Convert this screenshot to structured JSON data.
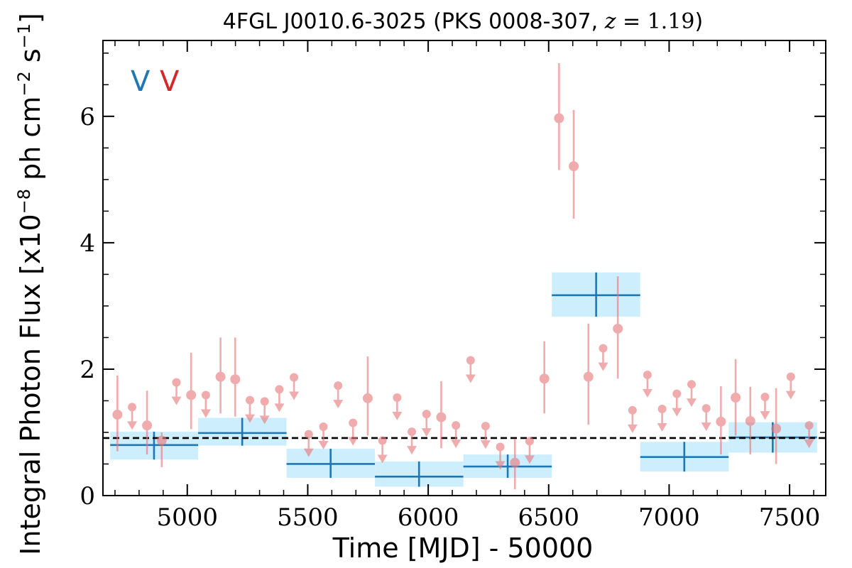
{
  "chart_data": {
    "type": "scatter",
    "title": {
      "source": "4FGL J0010.6-3025 (PKS 0008-307, ",
      "z_symbol": "z",
      "z_value": " = 1.19",
      "close": ")"
    },
    "xlabel": "Time [MJD] - 50000",
    "ylabel": {
      "main": "Integral Photon Flux [x10",
      "exp1": "−8",
      "mid": " ph cm",
      "exp2": "−2",
      "mid2": " s",
      "exp3": "−1",
      "end": "]"
    },
    "corner_marks": [
      {
        "text": "V",
        "color": "#1f77b4"
      },
      {
        "text": "V",
        "color": "#d62728"
      }
    ],
    "xlim": [
      4650,
      7650
    ],
    "ylim": [
      0,
      7.2
    ],
    "xticks": [
      5000,
      5500,
      6000,
      6500,
      7000,
      7500
    ],
    "yticks": [
      0,
      2,
      4,
      6
    ],
    "reference_level": 0.91,
    "colors": {
      "bin_fill": "#cdeefc",
      "bin_line": "#1f77b4",
      "point": "#e8797b",
      "reference": "#000000"
    },
    "series": [
      {
        "kind": "long_bins",
        "bins": [
          {
            "x0": 4680,
            "x1": 5045,
            "center": 4862,
            "y": 0.8,
            "ylo": 0.57,
            "yhi": 1.01
          },
          {
            "x0": 5045,
            "x1": 5412,
            "center": 5228,
            "y": 0.99,
            "ylo": 0.79,
            "yhi": 1.23
          },
          {
            "x0": 5412,
            "x1": 5779,
            "center": 5595,
            "y": 0.5,
            "ylo": 0.28,
            "yhi": 0.74
          },
          {
            "x0": 5779,
            "x1": 6146,
            "center": 5962,
            "y": 0.3,
            "ylo": 0.14,
            "yhi": 0.54
          },
          {
            "x0": 6146,
            "x1": 6513,
            "center": 6330,
            "y": 0.46,
            "ylo": 0.28,
            "yhi": 0.65
          },
          {
            "x0": 6513,
            "x1": 6880,
            "center": 6697,
            "y": 3.17,
            "ylo": 2.83,
            "yhi": 3.53
          },
          {
            "x0": 6880,
            "x1": 7247,
            "center": 7063,
            "y": 0.61,
            "ylo": 0.38,
            "yhi": 0.85
          },
          {
            "x0": 7247,
            "x1": 7614,
            "center": 7430,
            "y": 0.92,
            "ylo": 0.68,
            "yhi": 1.16
          }
        ]
      },
      {
        "kind": "short_bins_detections",
        "points": [
          {
            "x": 4710,
            "y": 1.28,
            "ylo": 0.7,
            "yhi": 1.9
          },
          {
            "x": 4833,
            "y": 1.11,
            "ylo": 0.65,
            "yhi": 1.66
          },
          {
            "x": 4894,
            "y": 0.87,
            "ylo": 0.45,
            "yhi": 1.0
          },
          {
            "x": 5016,
            "y": 1.59,
            "ylo": 1.05,
            "yhi": 2.26
          },
          {
            "x": 5138,
            "y": 1.88,
            "ylo": 1.3,
            "yhi": 2.5
          },
          {
            "x": 5199,
            "y": 1.84,
            "ylo": 1.25,
            "yhi": 2.5
          },
          {
            "x": 5749,
            "y": 1.54,
            "ylo": 0.95,
            "yhi": 2.2
          },
          {
            "x": 6054,
            "y": 1.24,
            "ylo": 0.75,
            "yhi": 1.81
          },
          {
            "x": 6360,
            "y": 0.52,
            "ylo": 0.1,
            "yhi": 0.9
          },
          {
            "x": 6482,
            "y": 1.85,
            "ylo": 1.3,
            "yhi": 2.44
          },
          {
            "x": 6543,
            "y": 5.97,
            "ylo": 5.15,
            "yhi": 6.84
          },
          {
            "x": 6604,
            "y": 5.21,
            "ylo": 4.38,
            "yhi": 6.1
          },
          {
            "x": 6665,
            "y": 1.88,
            "ylo": 1.12,
            "yhi": 2.72
          },
          {
            "x": 6787,
            "y": 2.64,
            "ylo": 1.85,
            "yhi": 3.47
          },
          {
            "x": 7215,
            "y": 1.17,
            "ylo": 0.65,
            "yhi": 1.73
          },
          {
            "x": 7276,
            "y": 1.55,
            "ylo": 0.95,
            "yhi": 2.16
          },
          {
            "x": 7337,
            "y": 1.18,
            "ylo": 0.65,
            "yhi": 1.72
          },
          {
            "x": 7444,
            "y": 1.06,
            "ylo": 0.5,
            "yhi": 1.7
          }
        ]
      },
      {
        "kind": "short_bins_upper_limits",
        "points": [
          {
            "x": 4771,
            "y": 1.4
          },
          {
            "x": 4955,
            "y": 1.79
          },
          {
            "x": 5077,
            "y": 1.59
          },
          {
            "x": 5260,
            "y": 1.51
          },
          {
            "x": 5321,
            "y": 1.49
          },
          {
            "x": 5382,
            "y": 1.68
          },
          {
            "x": 5443,
            "y": 1.87
          },
          {
            "x": 5504,
            "y": 0.97
          },
          {
            "x": 5565,
            "y": 1.09
          },
          {
            "x": 5626,
            "y": 1.74
          },
          {
            "x": 5688,
            "y": 1.15
          },
          {
            "x": 5810,
            "y": 0.87
          },
          {
            "x": 5871,
            "y": 1.55
          },
          {
            "x": 5932,
            "y": 1.01
          },
          {
            "x": 5993,
            "y": 1.29
          },
          {
            "x": 6115,
            "y": 1.11
          },
          {
            "x": 6176,
            "y": 2.14
          },
          {
            "x": 6238,
            "y": 1.1
          },
          {
            "x": 6299,
            "y": 0.77
          },
          {
            "x": 6421,
            "y": 0.86
          },
          {
            "x": 6726,
            "y": 2.33
          },
          {
            "x": 6848,
            "y": 1.35
          },
          {
            "x": 6910,
            "y": 1.91
          },
          {
            "x": 6971,
            "y": 1.37
          },
          {
            "x": 7032,
            "y": 1.61
          },
          {
            "x": 7093,
            "y": 1.76
          },
          {
            "x": 7154,
            "y": 1.38
          },
          {
            "x": 7398,
            "y": 1.56
          },
          {
            "x": 7505,
            "y": 1.88
          },
          {
            "x": 7581,
            "y": 1.11
          }
        ]
      }
    ]
  }
}
